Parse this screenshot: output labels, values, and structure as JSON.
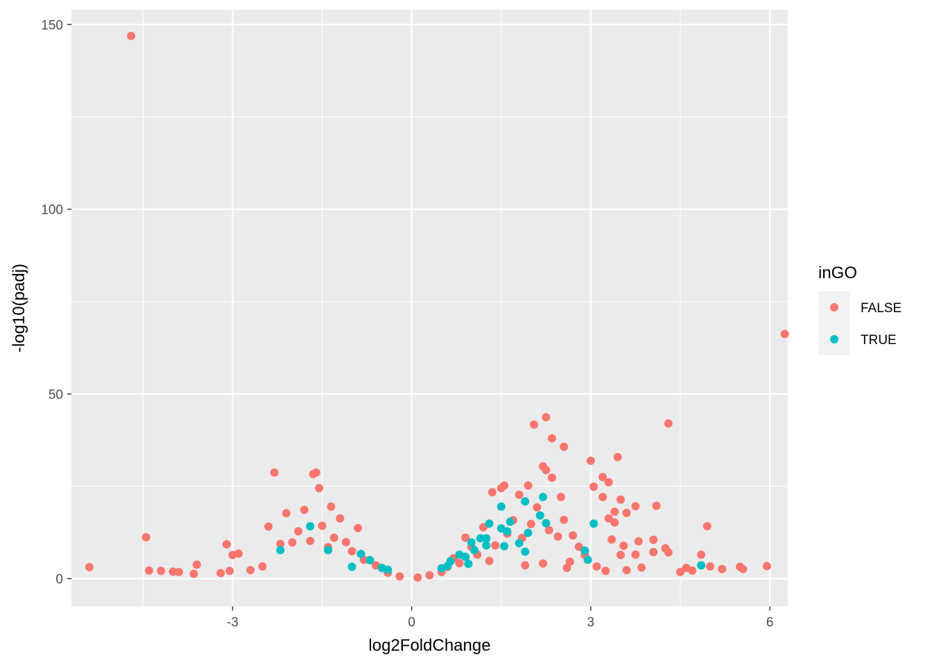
{
  "chart_data": {
    "type": "scatter",
    "title": "",
    "xlabel": "log2FoldChange",
    "ylabel": "-log10(padj)",
    "xlim": [
      -5.7,
      6.3
    ],
    "ylim": [
      -7.5,
      154
    ],
    "x_ticks": [
      -3,
      0,
      3,
      6
    ],
    "y_ticks": [
      0,
      50,
      100,
      150
    ],
    "x_tick_labels": [
      "-3",
      "0",
      "3",
      "6"
    ],
    "y_tick_labels": [
      "0",
      "50",
      "100",
      "150"
    ],
    "grid": true,
    "background": "#EBEBEB",
    "legend": {
      "title": "inGO",
      "placement": "right"
    },
    "series": [
      {
        "name": "FALSE",
        "color": "#F8766D",
        "points": [
          [
            -4.7,
            146.9
          ],
          [
            6.25,
            66.2
          ],
          [
            -5.4,
            3.1
          ],
          [
            -4.45,
            11.2
          ],
          [
            -4.4,
            2.2
          ],
          [
            -4.2,
            2.1
          ],
          [
            -4.0,
            1.9
          ],
          [
            -3.9,
            1.8
          ],
          [
            -3.6,
            3.8
          ],
          [
            -3.65,
            1.3
          ],
          [
            -3.1,
            9.3
          ],
          [
            -3.0,
            6.4
          ],
          [
            -2.9,
            6.8
          ],
          [
            -2.3,
            28.7
          ],
          [
            -2.1,
            17.7
          ],
          [
            -1.65,
            28.3
          ],
          [
            -1.6,
            28.7
          ],
          [
            -1.55,
            24.5
          ],
          [
            -1.35,
            19.5
          ],
          [
            -1.8,
            18.6
          ],
          [
            -2.4,
            14.1
          ],
          [
            -1.2,
            16.3
          ],
          [
            -0.9,
            13.7
          ],
          [
            -3.2,
            1.5
          ],
          [
            -3.05,
            2.1
          ],
          [
            -2.7,
            2.3
          ],
          [
            -2.5,
            3.3
          ],
          [
            -2.2,
            9.4
          ],
          [
            -2.0,
            9.8
          ],
          [
            -1.9,
            12.8
          ],
          [
            -1.7,
            10.2
          ],
          [
            -1.5,
            14.3
          ],
          [
            -1.4,
            8.5
          ],
          [
            -1.3,
            11.1
          ],
          [
            -1.1,
            9.9
          ],
          [
            -1.0,
            7.4
          ],
          [
            -0.8,
            5.1
          ],
          [
            -0.6,
            3.6
          ],
          [
            -0.4,
            1.6
          ],
          [
            -0.2,
            0.6
          ],
          [
            0.1,
            0.3
          ],
          [
            0.3,
            0.9
          ],
          [
            0.5,
            1.8
          ],
          [
            0.8,
            4.2
          ],
          [
            1.35,
            23.4
          ],
          [
            1.5,
            24.5
          ],
          [
            1.55,
            25.2
          ],
          [
            1.8,
            22.7
          ],
          [
            1.95,
            25.2
          ],
          [
            2.05,
            41.7
          ],
          [
            2.25,
            43.7
          ],
          [
            2.35,
            38.0
          ],
          [
            2.55,
            35.7
          ],
          [
            2.2,
            30.4
          ],
          [
            2.25,
            29.4
          ],
          [
            2.35,
            27.3
          ],
          [
            2.5,
            22.1
          ],
          [
            2.55,
            15.9
          ],
          [
            2.7,
            11.7
          ],
          [
            3.0,
            31.9
          ],
          [
            3.2,
            27.5
          ],
          [
            3.3,
            26.1
          ],
          [
            3.45,
            32.9
          ],
          [
            3.05,
            24.9
          ],
          [
            3.2,
            22.1
          ],
          [
            3.5,
            21.4
          ],
          [
            3.4,
            18.1
          ],
          [
            3.6,
            17.8
          ],
          [
            3.75,
            19.6
          ],
          [
            3.3,
            16.3
          ],
          [
            3.4,
            15.2
          ],
          [
            4.1,
            19.7
          ],
          [
            4.3,
            42.0
          ],
          [
            4.95,
            14.2
          ],
          [
            3.35,
            10.6
          ],
          [
            3.55,
            8.9
          ],
          [
            3.8,
            10.1
          ],
          [
            4.05,
            10.5
          ],
          [
            4.25,
            8.2
          ],
          [
            4.05,
            7.2
          ],
          [
            4.3,
            7.1
          ],
          [
            3.75,
            6.5
          ],
          [
            3.5,
            6.4
          ],
          [
            4.85,
            6.5
          ],
          [
            4.5,
            1.8
          ],
          [
            4.6,
            2.9
          ],
          [
            4.7,
            2.2
          ],
          [
            5.0,
            3.3
          ],
          [
            5.2,
            2.6
          ],
          [
            5.5,
            3.2
          ],
          [
            5.55,
            2.6
          ],
          [
            5.95,
            3.4
          ],
          [
            3.1,
            3.3
          ],
          [
            3.25,
            2.1
          ],
          [
            3.6,
            2.3
          ],
          [
            3.85,
            3.0
          ],
          [
            0.9,
            11.1
          ],
          [
            1.0,
            8.6
          ],
          [
            1.2,
            13.9
          ],
          [
            1.1,
            6.5
          ],
          [
            1.4,
            9.0
          ],
          [
            1.6,
            12.2
          ],
          [
            1.7,
            15.8
          ],
          [
            1.85,
            11.0
          ],
          [
            2.0,
            14.8
          ],
          [
            2.1,
            19.3
          ],
          [
            2.3,
            13.1
          ],
          [
            2.45,
            11.4
          ],
          [
            2.65,
            4.6
          ],
          [
            2.8,
            8.6
          ],
          [
            2.9,
            6.4
          ],
          [
            0.7,
            5.5
          ],
          [
            0.6,
            3.2
          ],
          [
            1.3,
            4.8
          ],
          [
            1.9,
            3.6
          ],
          [
            2.2,
            4.1
          ],
          [
            2.6,
            2.9
          ]
        ]
      },
      {
        "name": "TRUE",
        "color": "#00BFC4",
        "points": [
          [
            -1.7,
            14.2
          ],
          [
            -2.2,
            7.7
          ],
          [
            -1.4,
            7.7
          ],
          [
            -0.85,
            6.7
          ],
          [
            -1.0,
            3.2
          ],
          [
            -0.7,
            5.0
          ],
          [
            -0.5,
            2.9
          ],
          [
            -0.4,
            2.4
          ],
          [
            0.5,
            2.8
          ],
          [
            0.6,
            3.4
          ],
          [
            0.65,
            4.7
          ],
          [
            0.8,
            6.5
          ],
          [
            0.9,
            5.9
          ],
          [
            0.95,
            4.0
          ],
          [
            1.0,
            9.8
          ],
          [
            1.05,
            7.7
          ],
          [
            1.15,
            10.9
          ],
          [
            1.25,
            10.9
          ],
          [
            1.3,
            14.9
          ],
          [
            1.25,
            9.0
          ],
          [
            1.5,
            19.5
          ],
          [
            1.5,
            13.6
          ],
          [
            1.55,
            8.8
          ],
          [
            1.6,
            12.8
          ],
          [
            1.65,
            15.4
          ],
          [
            1.8,
            9.6
          ],
          [
            1.9,
            7.3
          ],
          [
            1.9,
            20.9
          ],
          [
            1.95,
            12.4
          ],
          [
            2.15,
            17.1
          ],
          [
            2.2,
            22.1
          ],
          [
            2.25,
            15.0
          ],
          [
            2.9,
            7.6
          ],
          [
            2.95,
            5.1
          ],
          [
            3.05,
            14.9
          ],
          [
            4.85,
            3.6
          ]
        ]
      }
    ]
  }
}
